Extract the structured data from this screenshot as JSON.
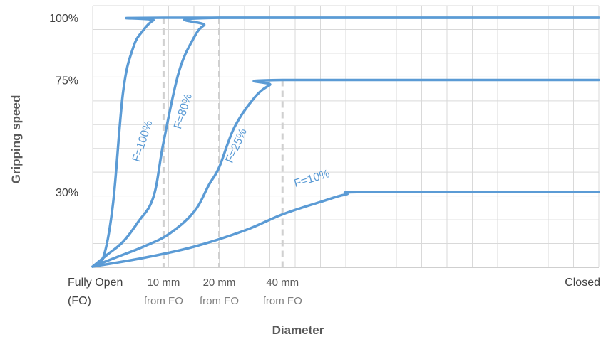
{
  "chart_data": {
    "type": "line",
    "ylabel": "Gripping speed",
    "xlabel": "Diameter",
    "yticks": [
      {
        "label": "100%",
        "value": 100
      },
      {
        "label": "75%",
        "value": 75
      },
      {
        "label": "30%",
        "value": 30
      }
    ],
    "xticks": [
      {
        "lines": [
          "Fully Open",
          "(FO)"
        ],
        "pos": 0,
        "align": "start",
        "style": "main"
      },
      {
        "lines": [
          "10 mm",
          "from FO"
        ],
        "pos": 0.14,
        "align": "middle",
        "style": "sub"
      },
      {
        "lines": [
          "20 mm",
          "from FO"
        ],
        "pos": 0.25,
        "align": "middle",
        "style": "sub"
      },
      {
        "lines": [
          "40 mm",
          "from FO"
        ],
        "pos": 0.375,
        "align": "middle",
        "style": "sub"
      },
      {
        "lines": [
          "Closed"
        ],
        "pos": 1,
        "align": "end",
        "style": "main"
      }
    ],
    "series": [
      {
        "name": "F=100%",
        "plateau": 100,
        "reach": 0.14,
        "label_angle": -72,
        "x": [
          0,
          0.02,
          0.04,
          0.06,
          0.08,
          0.1,
          0.12,
          0.14,
          1.0
        ],
        "y": [
          0,
          3,
          25,
          70,
          88,
          95,
          99,
          100,
          100
        ]
      },
      {
        "name": "F=80%",
        "plateau": 100,
        "reach": 0.25,
        "label_angle": -72,
        "x": [
          0,
          0.03,
          0.06,
          0.09,
          0.12,
          0.14,
          0.17,
          0.2,
          0.22,
          0.25,
          1.0
        ],
        "y": [
          0,
          5,
          10,
          18,
          28,
          50,
          78,
          92,
          97,
          100,
          100
        ]
      },
      {
        "name": "F=25%",
        "plateau": 75,
        "reach": 0.375,
        "label_angle": -66,
        "x": [
          0,
          0.05,
          0.1,
          0.15,
          0.2,
          0.23,
          0.25,
          0.28,
          0.32,
          0.35,
          0.375,
          1.0
        ],
        "y": [
          0,
          4,
          8,
          13,
          22,
          33,
          40,
          56,
          68,
          73,
          75,
          75
        ]
      },
      {
        "name": "F=10%",
        "plateau": 30,
        "reach": 0.55,
        "label_angle": -17,
        "x": [
          0,
          0.1,
          0.2,
          0.3,
          0.375,
          0.45,
          0.5,
          0.55,
          1.0
        ],
        "y": [
          0,
          3.5,
          8,
          14.5,
          21,
          26,
          29,
          30,
          30
        ]
      }
    ],
    "grid": true,
    "legend": "none",
    "colors": {
      "series": "#5b9bd5",
      "grid": "#d9d9d9",
      "reference_line": "#d0d0d0"
    }
  }
}
